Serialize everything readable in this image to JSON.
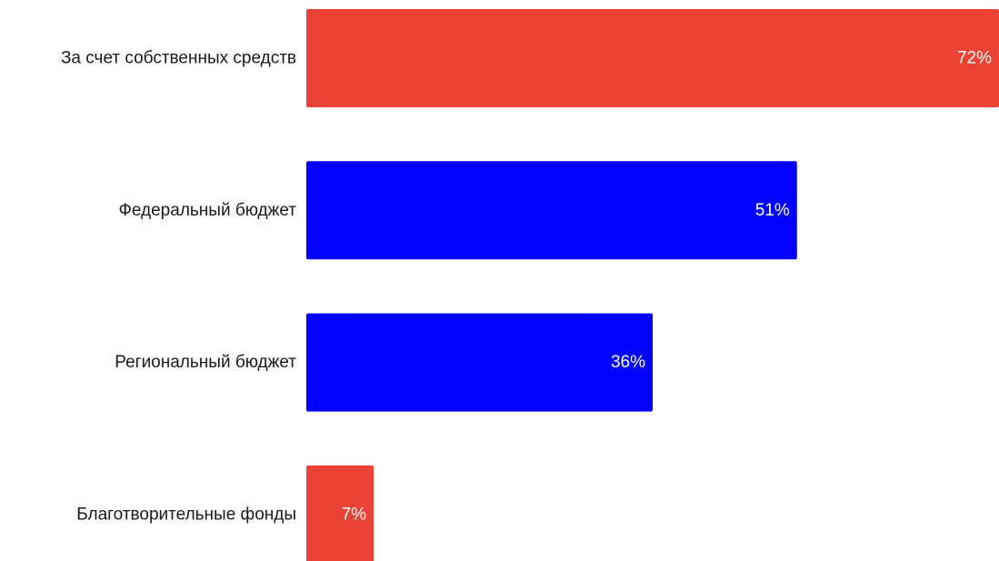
{
  "chart_data": {
    "type": "bar",
    "orientation": "horizontal",
    "categories": [
      "За счет собственных средств",
      "Федеральный бюджет",
      "Региональный бюджет",
      "Благотворительные фонды"
    ],
    "values": [
      72,
      51,
      36,
      7
    ],
    "value_labels": [
      "72%",
      "51%",
      "36%",
      "7%"
    ],
    "colors": [
      "#EA4335",
      "#0000FF",
      "#0000FF",
      "#EA4335"
    ],
    "unit": "%",
    "xlim": [
      0,
      72
    ],
    "grid": false,
    "legend": "none"
  }
}
